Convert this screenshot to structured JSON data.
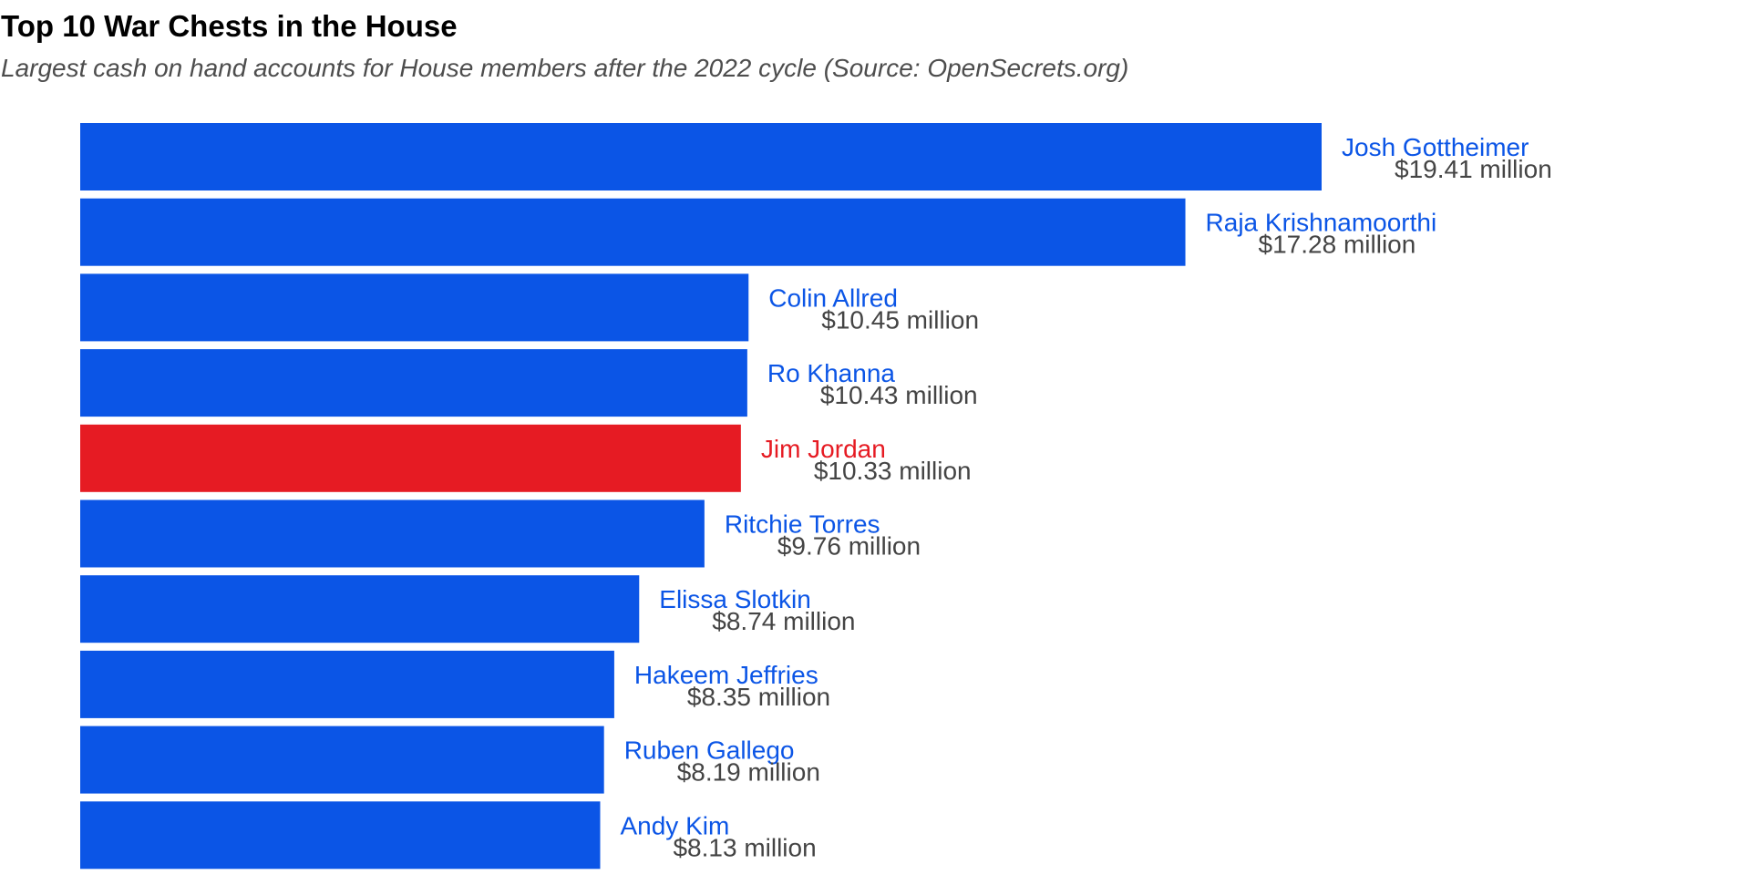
{
  "chart_data": {
    "type": "bar",
    "orientation": "horizontal",
    "title": "Top 10 War Chests in the House",
    "subtitle": "Largest cash on hand accounts for House members after the 2022 cycle (Source: OpenSecrets.org)",
    "categories": [
      "Josh Gottheimer",
      "Raja Krishnamoorthi",
      "Colin Allred",
      "Ro Khanna",
      "Jim Jordan",
      "Ritchie Torres",
      "Elissa Slotkin",
      "Hakeem Jeffries",
      "Ruben Gallego",
      "Andy Kim"
    ],
    "values": [
      19.41,
      17.28,
      10.45,
      10.43,
      10.33,
      9.76,
      8.74,
      8.35,
      8.19,
      8.13
    ],
    "value_labels": [
      "$19.41 million",
      "$17.28 million",
      "$10.45 million",
      "$10.43 million",
      "$10.33 million",
      "$9.76 million",
      "$8.74 million",
      "$8.35 million",
      "$8.19 million",
      "$8.13 million"
    ],
    "bar_colors": [
      "#0b55e6",
      "#0b55e6",
      "#0b55e6",
      "#0b55e6",
      "#e61b23",
      "#0b55e6",
      "#0b55e6",
      "#0b55e6",
      "#0b55e6",
      "#0b55e6"
    ],
    "colors": {
      "democrat": "#0b55e6",
      "republican": "#e61b23",
      "value_text": "#444444"
    },
    "xlim": [
      0,
      19.41
    ],
    "xlabel": "",
    "ylabel": "",
    "grid": false,
    "legend": "none"
  }
}
